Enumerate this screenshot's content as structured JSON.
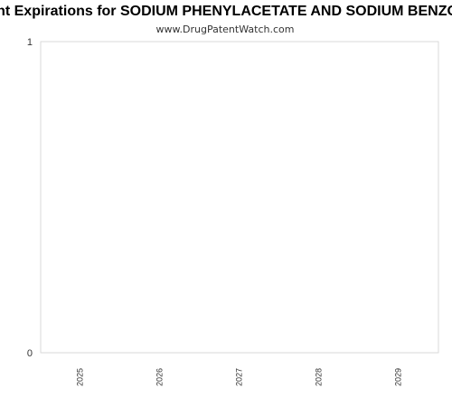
{
  "chart_data": {
    "type": "bar",
    "title": "Patent Expirations for SODIUM PHENYLACETATE AND SODIUM BENZOATE",
    "subtitle": "www.DrugPatentWatch.com",
    "categories": [
      "2025",
      "2026",
      "2027",
      "2028",
      "2029"
    ],
    "values": [
      0,
      0,
      0,
      0,
      0
    ],
    "ylim": [
      0,
      1
    ],
    "yticks": [
      "0",
      "1"
    ],
    "grid": false,
    "legend": "none",
    "colors": {
      "frame": "#d9d9d9",
      "text": "#333333",
      "title": "#000000",
      "bar": "#4472c4"
    }
  }
}
